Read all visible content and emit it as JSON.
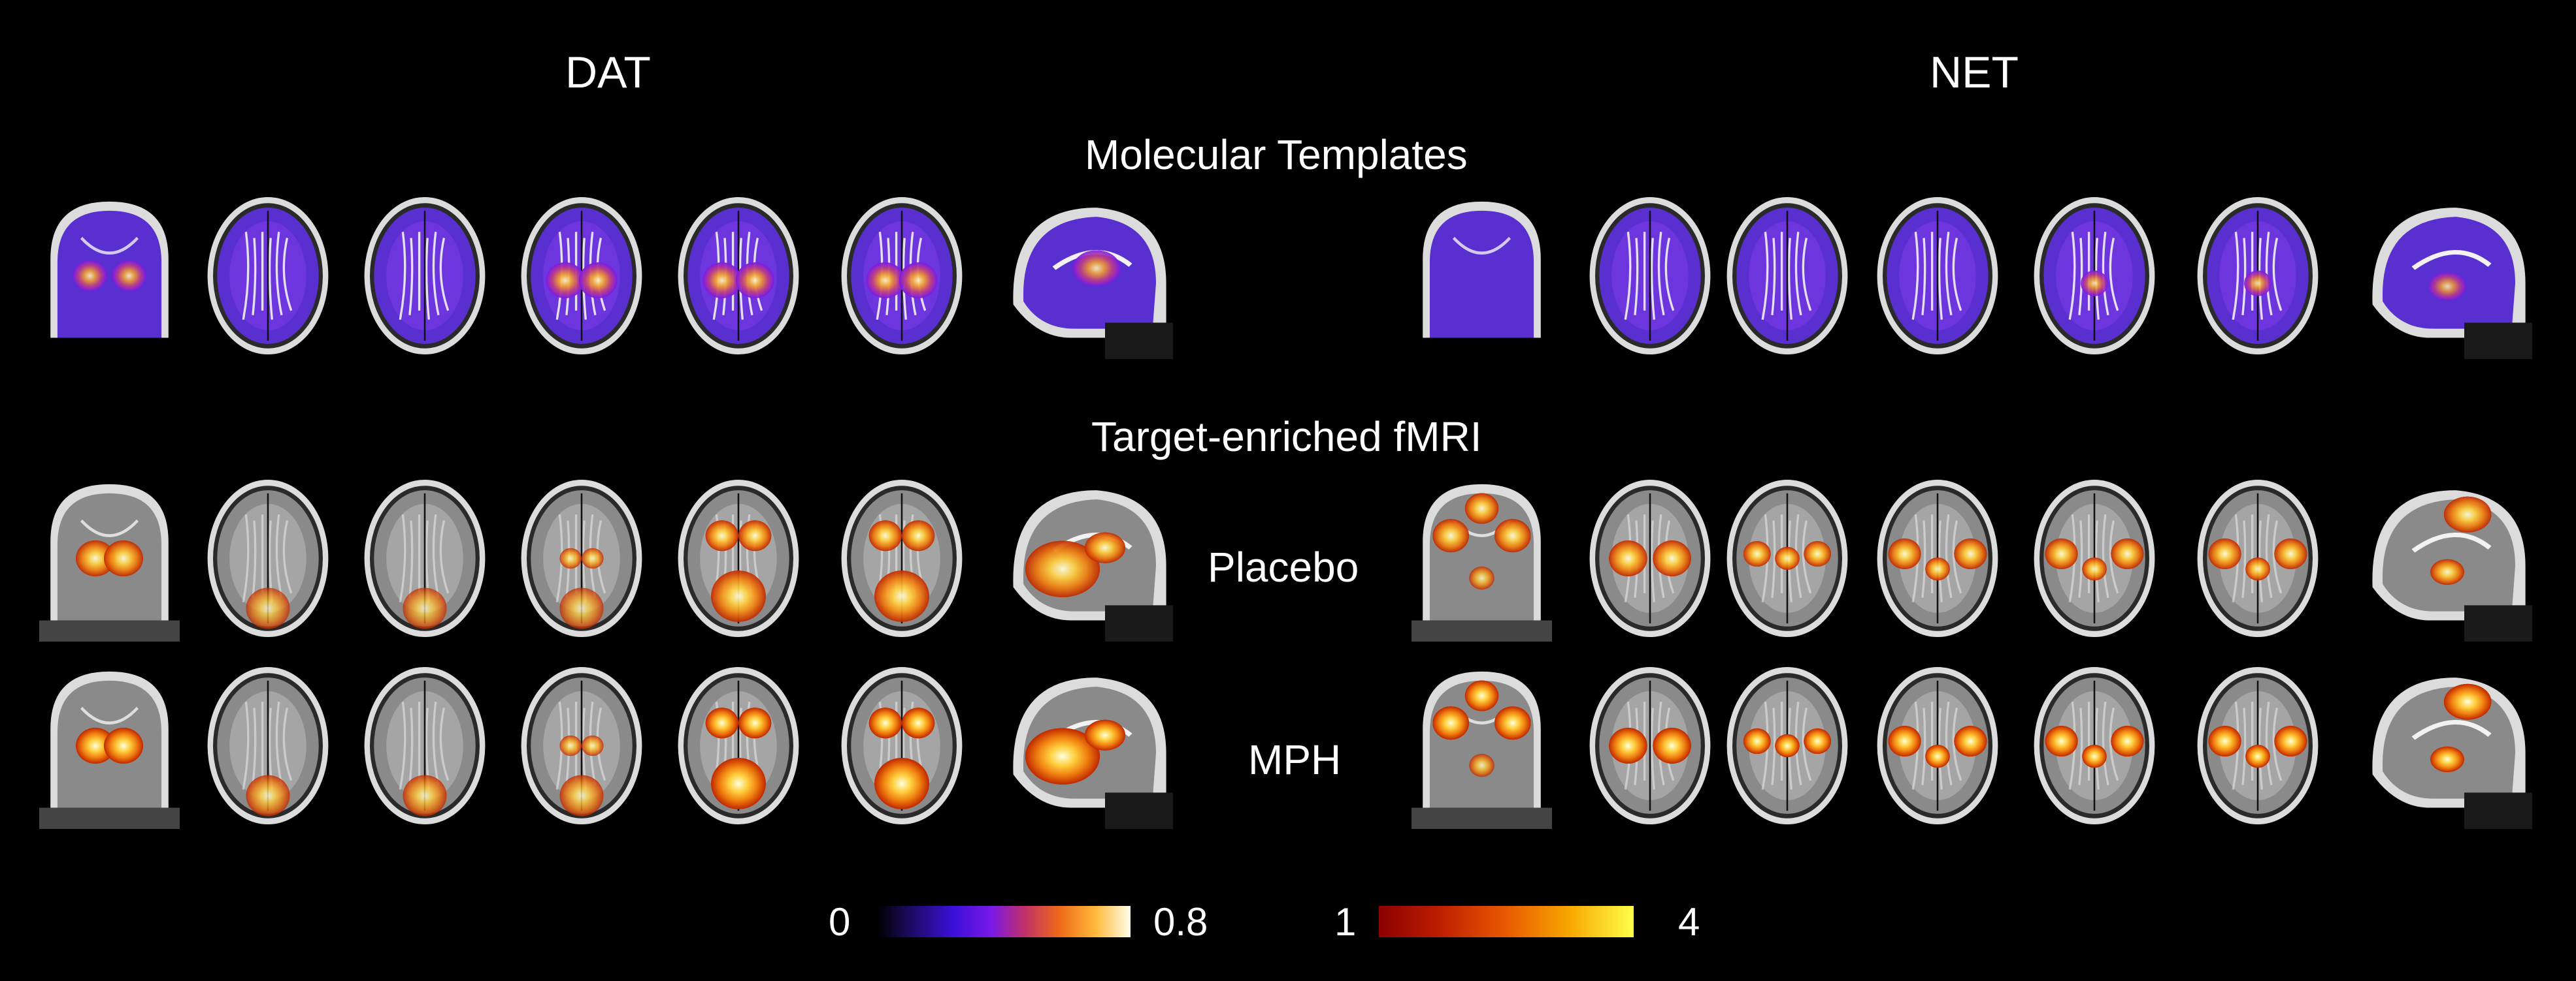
{
  "headers": {
    "left": "DAT",
    "right": "NET"
  },
  "sections": {
    "molecular": "Molecular Templates",
    "fmri": "Target-enriched fMRI"
  },
  "row_labels": {
    "placebo": "Placebo",
    "mph": "MPH"
  },
  "colorbars": {
    "molecular": {
      "min": "0",
      "max": "0.8"
    },
    "fmri": {
      "min": "1",
      "max": "4"
    }
  },
  "colors": {
    "background": "#000000",
    "molecular_map": [
      "#3b10d8",
      "#7a18e8",
      "#c0306a",
      "#ffb83a",
      "#ffffe8"
    ],
    "fmri_map": [
      "#8b0000",
      "#e85a00",
      "#f8a800",
      "#ffff4a"
    ]
  },
  "panels": [
    {
      "group": "dat",
      "row": "molecular",
      "slices": [
        "coronal",
        "axial",
        "axial",
        "axial",
        "axial",
        "axial",
        "sagittal"
      ]
    },
    {
      "group": "net",
      "row": "molecular",
      "slices": [
        "coronal",
        "axial",
        "axial",
        "axial",
        "axial",
        "axial",
        "sagittal"
      ]
    },
    {
      "group": "dat",
      "row": "placebo",
      "slices": [
        "coronal",
        "axial",
        "axial",
        "axial",
        "axial",
        "axial",
        "sagittal"
      ]
    },
    {
      "group": "net",
      "row": "placebo",
      "slices": [
        "coronal",
        "axial",
        "axial",
        "axial",
        "axial",
        "axial",
        "sagittal"
      ]
    },
    {
      "group": "dat",
      "row": "mph",
      "slices": [
        "coronal",
        "axial",
        "axial",
        "axial",
        "axial",
        "axial",
        "sagittal"
      ]
    },
    {
      "group": "net",
      "row": "mph",
      "slices": [
        "coronal",
        "axial",
        "axial",
        "axial",
        "axial",
        "axial",
        "sagittal"
      ]
    }
  ]
}
